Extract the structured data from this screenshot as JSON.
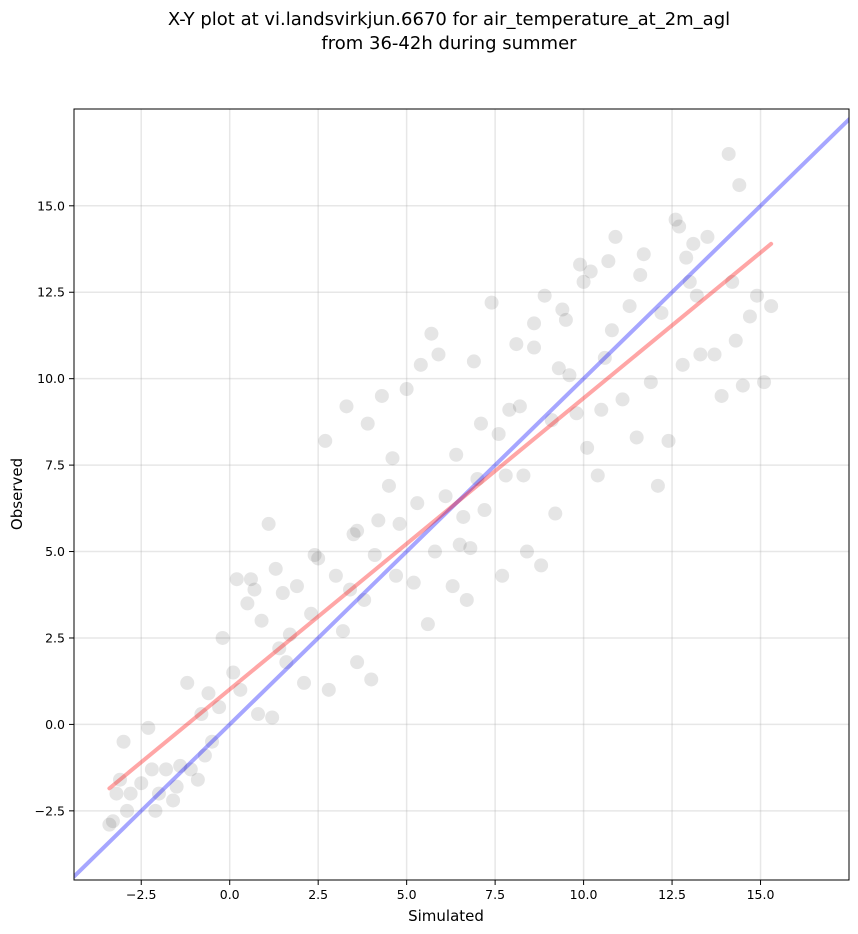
{
  "chart_data": {
    "type": "scatter",
    "title_line1": "X-Y plot at vi.landsvirkjun.6670 for air_temperature_at_2m_agl",
    "title_line2": "from 36-42h during summer",
    "xlabel": "Simulated",
    "ylabel": "Observed",
    "xlim": [
      -4.4,
      17.5
    ],
    "ylim": [
      -4.5,
      17.8
    ],
    "xticks": [
      -2.5,
      0.0,
      2.5,
      5.0,
      7.5,
      10.0,
      12.5,
      15.0
    ],
    "xtick_labels": [
      "−2.5",
      "0.0",
      "2.5",
      "5.0",
      "7.5",
      "10.0",
      "12.5",
      "15.0"
    ],
    "yticks": [
      -2.5,
      0.0,
      2.5,
      5.0,
      7.5,
      10.0,
      12.5,
      15.0
    ],
    "ytick_labels": [
      "−2.5",
      "0.0",
      "2.5",
      "5.0",
      "7.5",
      "10.0",
      "12.5",
      "15.0"
    ],
    "grid": true,
    "point_color": "#000000",
    "point_alpha": 0.1,
    "one_to_one_line": {
      "color": "#0000ff",
      "alpha": 0.35,
      "x": [
        -4.4,
        17.5
      ],
      "y": [
        -4.4,
        17.5
      ]
    },
    "fit_line": {
      "color": "#ff0000",
      "alpha": 0.35,
      "x": [
        -3.4,
        15.3
      ],
      "y": [
        -1.85,
        13.9
      ]
    },
    "points": [
      [
        -3.4,
        -2.9
      ],
      [
        -3.3,
        -2.8
      ],
      [
        -3.2,
        -2.0
      ],
      [
        -3.1,
        -1.6
      ],
      [
        -3.0,
        -0.5
      ],
      [
        -2.9,
        -2.5
      ],
      [
        -2.8,
        -2.0
      ],
      [
        -2.5,
        -1.7
      ],
      [
        -2.3,
        -0.1
      ],
      [
        -2.2,
        -1.3
      ],
      [
        -2.1,
        -2.5
      ],
      [
        -2.0,
        -2.0
      ],
      [
        -1.8,
        -1.3
      ],
      [
        -1.6,
        -2.2
      ],
      [
        -1.5,
        -1.8
      ],
      [
        -1.4,
        -1.2
      ],
      [
        -1.2,
        1.2
      ],
      [
        -1.1,
        -1.3
      ],
      [
        -0.9,
        -1.6
      ],
      [
        -0.8,
        0.3
      ],
      [
        -0.7,
        -0.9
      ],
      [
        -0.6,
        0.9
      ],
      [
        -0.5,
        -0.5
      ],
      [
        -0.3,
        0.5
      ],
      [
        -0.2,
        2.5
      ],
      [
        0.1,
        1.5
      ],
      [
        0.2,
        4.2
      ],
      [
        0.3,
        1.0
      ],
      [
        0.5,
        3.5
      ],
      [
        0.6,
        4.2
      ],
      [
        0.8,
        0.3
      ],
      [
        0.9,
        3.0
      ],
      [
        1.1,
        5.8
      ],
      [
        1.2,
        0.2
      ],
      [
        1.3,
        4.5
      ],
      [
        1.5,
        3.8
      ],
      [
        1.6,
        1.8
      ],
      [
        1.7,
        2.6
      ],
      [
        1.9,
        4.0
      ],
      [
        2.1,
        1.2
      ],
      [
        2.3,
        3.2
      ],
      [
        2.5,
        4.8
      ],
      [
        2.7,
        8.2
      ],
      [
        2.8,
        1.0
      ],
      [
        3.0,
        4.3
      ],
      [
        3.2,
        2.7
      ],
      [
        3.3,
        9.2
      ],
      [
        3.5,
        5.5
      ],
      [
        3.6,
        1.8
      ],
      [
        3.8,
        3.6
      ],
      [
        3.9,
        8.7
      ],
      [
        4.0,
        1.3
      ],
      [
        4.1,
        4.9
      ],
      [
        4.3,
        9.5
      ],
      [
        4.5,
        6.9
      ],
      [
        4.6,
        7.7
      ],
      [
        4.8,
        5.8
      ],
      [
        5.0,
        9.7
      ],
      [
        5.2,
        4.1
      ],
      [
        5.4,
        10.4
      ],
      [
        5.6,
        2.9
      ],
      [
        5.7,
        11.3
      ],
      [
        5.9,
        10.7
      ],
      [
        6.1,
        6.6
      ],
      [
        6.3,
        4.0
      ],
      [
        6.5,
        5.2
      ],
      [
        6.7,
        3.6
      ],
      [
        6.9,
        10.5
      ],
      [
        7.0,
        7.1
      ],
      [
        7.2,
        6.2
      ],
      [
        7.4,
        12.2
      ],
      [
        7.6,
        8.4
      ],
      [
        7.7,
        4.3
      ],
      [
        7.9,
        9.1
      ],
      [
        8.1,
        11.0
      ],
      [
        8.3,
        7.2
      ],
      [
        8.4,
        5.0
      ],
      [
        8.6,
        10.9
      ],
      [
        8.8,
        4.6
      ],
      [
        8.9,
        12.4
      ],
      [
        9.1,
        8.8
      ],
      [
        9.2,
        6.1
      ],
      [
        9.4,
        12.0
      ],
      [
        9.6,
        10.1
      ],
      [
        9.8,
        9.0
      ],
      [
        10.0,
        12.8
      ],
      [
        10.1,
        8.0
      ],
      [
        10.2,
        13.1
      ],
      [
        10.4,
        7.2
      ],
      [
        10.6,
        10.6
      ],
      [
        10.8,
        11.4
      ],
      [
        10.9,
        14.1
      ],
      [
        11.1,
        9.4
      ],
      [
        11.3,
        12.1
      ],
      [
        11.5,
        8.3
      ],
      [
        11.7,
        13.6
      ],
      [
        11.9,
        9.9
      ],
      [
        12.1,
        6.9
      ],
      [
        12.2,
        11.9
      ],
      [
        12.4,
        8.2
      ],
      [
        12.6,
        14.6
      ],
      [
        12.8,
        10.4
      ],
      [
        13.0,
        12.8
      ],
      [
        13.1,
        13.9
      ],
      [
        13.3,
        10.7
      ],
      [
        13.5,
        14.1
      ],
      [
        13.7,
        10.7
      ],
      [
        13.9,
        9.5
      ],
      [
        14.1,
        16.5
      ],
      [
        14.2,
        12.8
      ],
      [
        14.4,
        15.6
      ],
      [
        14.5,
        9.8
      ],
      [
        14.7,
        11.8
      ],
      [
        14.9,
        12.4
      ],
      [
        15.1,
        9.9
      ],
      [
        15.3,
        12.1
      ],
      [
        14.3,
        11.1
      ],
      [
        13.2,
        12.4
      ],
      [
        12.9,
        13.5
      ],
      [
        12.7,
        14.4
      ],
      [
        11.6,
        13.0
      ],
      [
        10.7,
        13.4
      ],
      [
        9.9,
        13.3
      ],
      [
        9.5,
        11.7
      ],
      [
        8.6,
        11.6
      ],
      [
        3.6,
        5.6
      ],
      [
        2.4,
        4.9
      ],
      [
        0.7,
        3.9
      ],
      [
        1.4,
        2.2
      ],
      [
        6.8,
        5.1
      ],
      [
        5.3,
        6.4
      ],
      [
        7.8,
        7.2
      ],
      [
        8.2,
        9.2
      ],
      [
        6.4,
        7.8
      ],
      [
        4.7,
        4.3
      ],
      [
        5.8,
        5.0
      ],
      [
        7.1,
        8.7
      ],
      [
        6.6,
        6.0
      ],
      [
        4.2,
        5.9
      ],
      [
        9.3,
        10.3
      ],
      [
        10.5,
        9.1
      ],
      [
        3.4,
        3.9
      ]
    ]
  }
}
